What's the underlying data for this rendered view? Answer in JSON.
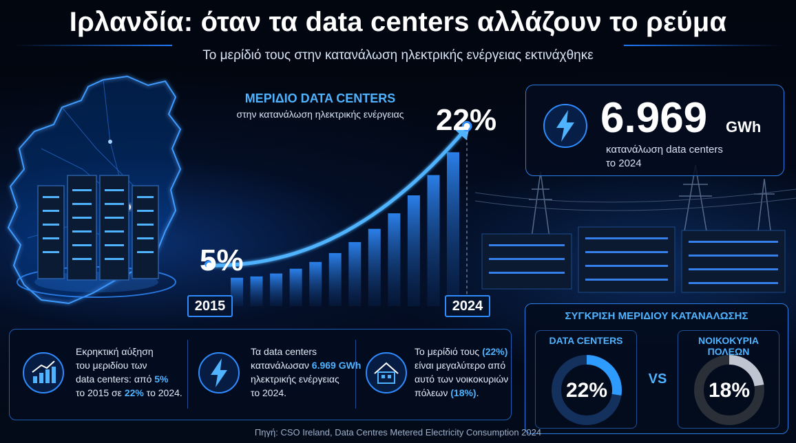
{
  "header": {
    "title": "Ιρλανδία: όταν τα data centers αλλάζουν το ρεύμα",
    "subtitle": "Το μερίδιό τους στην κατανάλωση ηλεκτρικής ενέργειας εκτινάχθηκε"
  },
  "chart_data": {
    "type": "area",
    "title": "ΜΕΡΙΔΙΟ DATA CENTERS",
    "subtitle": "στην κατανάλωση ηλεκτρικής ενέργειας",
    "x": [
      2015,
      2024
    ],
    "series": [
      {
        "values": [
          5,
          22
        ]
      }
    ],
    "start_label": "5%",
    "end_label": "22%",
    "start_year": "2015",
    "end_year": "2024",
    "ylim": [
      0,
      25
    ],
    "grid": false
  },
  "kpi": {
    "value": "6.969",
    "unit": "GWh",
    "desc_line1": "κατανάλωση data centers",
    "desc_line2": "το 2024",
    "icon": "lightning-bolt-icon"
  },
  "info": {
    "growth": {
      "icon": "bar-chart-trend-icon",
      "l1": "Εκρηκτική αύξηση",
      "l2": "του μεριδίου των",
      "l3a": "data centers: από ",
      "l3b": "5%",
      "l4a": "το 2015 σε ",
      "l4b": "22%",
      "l4c": " το 2024."
    },
    "consumption": {
      "icon": "lightning-bolt-icon",
      "l1": "Τα data centers",
      "l2a": "κατανάλωσαν ",
      "l2b": "6.969 GWh",
      "l3": "ηλεκτρικής ενέργειας",
      "l4": "το 2024."
    },
    "households": {
      "icon": "house-icon",
      "l1a": "Το μερίδιό τους ",
      "l1b": "(22%)",
      "l2": "είναι μεγαλύτερο από",
      "l3": "αυτό των νοικοκυριών",
      "l4a": "πόλεων ",
      "l4b": "(18%)",
      "l4c": "."
    }
  },
  "comparison": {
    "title": "ΣΥΓΚΡΙΣΗ ΜΕΡΙΔΙΟΥ ΚΑΤΑΝΑΛΩΣΗΣ",
    "vs": "VS",
    "left": {
      "label": "DATA CENTERS",
      "value_label": "22%",
      "share": 22,
      "color": "#2e9bff"
    },
    "right": {
      "label": "ΝΟΙΚΟΚΥΡΙΑ ΠΟΛΕΩΝ",
      "value_label": "18%",
      "share": 18,
      "color": "#bfc6d1"
    }
  },
  "source": "Πηγή: CSO Ireland, Data Centres Metered Electricity Consumption 2024"
}
